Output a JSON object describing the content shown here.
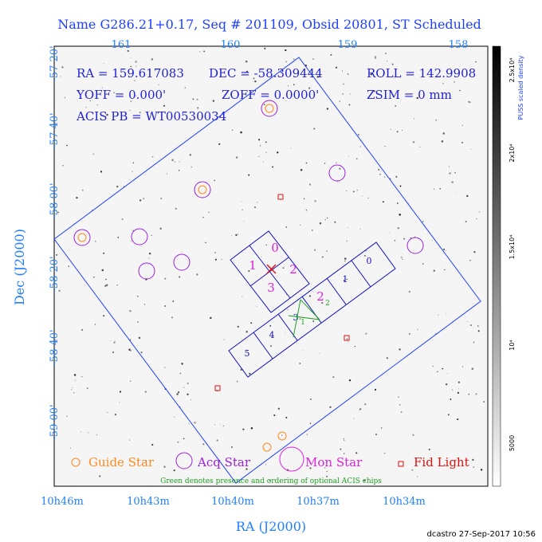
{
  "title": "Name G286.21+0.17, Seq # 201109, Obsid 20801, ST Scheduled",
  "info": {
    "ra": "RA = 159.617083",
    "dec": "DEC = -58.309444",
    "roll": "ROLL = 142.9908",
    "yoff": "YOFF = 0.000'",
    "zoff": "ZOFF = 0.0000'",
    "zsim": "ZSIM = 0 mm",
    "acis_pb": "ACIS PB = WT00530034"
  },
  "top_ticks": [
    "161",
    "160",
    "159",
    "158"
  ],
  "left_ticks": [
    "-57 20'",
    "-57 40'",
    "-58 00'",
    "-58 20'",
    "-58 40'",
    "-59 00'"
  ],
  "bottom_ticks": [
    "10h46m",
    "10h43m",
    "10h40m",
    "10h37m",
    "10h34m"
  ],
  "ylabel": "Dec (J2000)",
  "xlabel": "RA (J2000)",
  "colorbar": {
    "label": "PUSS scaled density",
    "ticks": [
      "2.5x10⁴",
      "2x10⁴",
      "1.5x10⁴",
      "10⁴",
      "5000"
    ]
  },
  "ccd_labels": {
    "i0": "0",
    "i1": "1",
    "i2": "2",
    "i3": "3",
    "s0": "0",
    "s1": "1",
    "s2": "2",
    "s3": "3",
    "s4": "4",
    "s5": "5",
    "opt1": "1",
    "opt2": "2"
  },
  "legend": {
    "guide": "Guide Star",
    "acq": "Acq Star",
    "mon": "Mon Star",
    "fid": "Fid Light",
    "note": "Green denotes presence and ordering of optional ACIS chips"
  },
  "credit": "dcastro 27-Sep-2017 10:56",
  "colors": {
    "frame": "#1f3fff",
    "ccd": "#1010c0",
    "guide": "#ff8a1e",
    "acq": "#9a20e0",
    "mon": "#e020e0",
    "fid": "#e01010",
    "optional": "#20a020"
  }
}
